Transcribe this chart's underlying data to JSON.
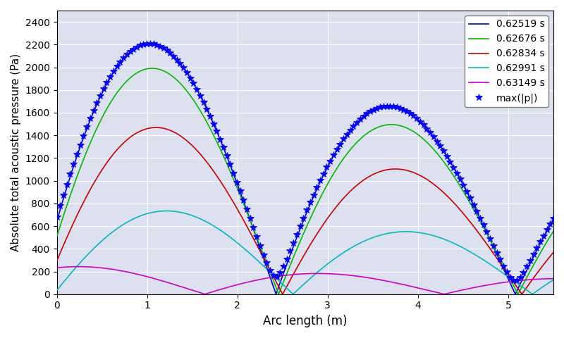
{
  "xlabel": "Arc length (m)",
  "ylabel": "Absolute total acoustic pressure (Pa)",
  "xlim": [
    0,
    5.5
  ],
  "ylim": [
    0,
    2500
  ],
  "yticks": [
    0,
    200,
    400,
    600,
    800,
    1000,
    1200,
    1400,
    1600,
    1800,
    2000,
    2200,
    2400
  ],
  "xticks": [
    0,
    1,
    2,
    3,
    4,
    5
  ],
  "legend_labels": [
    "0.62519 s",
    "0.62676 s",
    "0.62834 s",
    "0.62991 s",
    "0.63149 s",
    "max(|p|)"
  ],
  "line_colors": [
    "#0000cc",
    "#00bb00",
    "#cc0000",
    "#00bbbb",
    "#cc00cc"
  ],
  "star_color": "#0000ff",
  "background_color": "#dde0ee",
  "times": [
    0.62519,
    0.62676,
    0.62834,
    0.62991,
    0.63149
  ]
}
